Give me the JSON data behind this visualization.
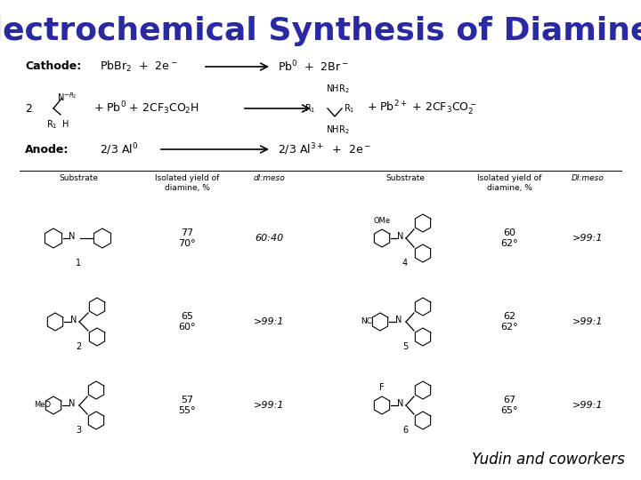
{
  "title": "Electrochemical Synthesis of Diamines",
  "title_color": "#2929a3",
  "title_fontsize": 26,
  "author": "Yudin and coworkers",
  "bg_color": "#ffffff",
  "text_color": "#000000",
  "col_headers_left": [
    "Substrate",
    "Isolated yield of\ndiamine, %",
    "dl:meso"
  ],
  "col_headers_right": [
    "Substrate",
    "Isolated yield of\ndiamine, %",
    "Dl:meso"
  ],
  "compounds_left": [
    {
      "num": "1",
      "yield": "77\n70°",
      "ratio": "60:40"
    },
    {
      "num": "2",
      "yield": "65\n60°",
      "ratio": ">99:1"
    },
    {
      "num": "3",
      "yield": "57\n55°",
      "ratio": ">99:1"
    }
  ],
  "compounds_right": [
    {
      "num": "4",
      "yield": "60\n62°",
      "ratio": ">99:1"
    },
    {
      "num": "5",
      "yield": "62\n62°",
      "ratio": ">99:1"
    },
    {
      "num": "6",
      "yield": "67\n65°",
      "ratio": ">99:1"
    }
  ]
}
